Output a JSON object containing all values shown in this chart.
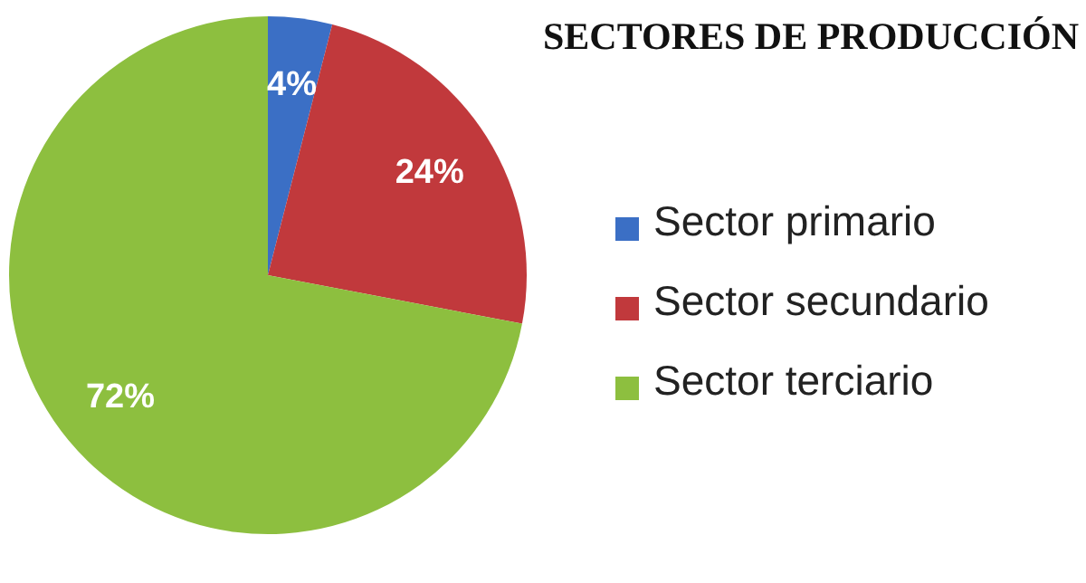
{
  "chart_data": {
    "type": "pie",
    "title": "SECTORES DE PRODUCCIÓN",
    "categories": [
      "Sector primario",
      "Sector secundario",
      "Sector terciario"
    ],
    "values": [
      4,
      24,
      72
    ],
    "colors": [
      "#3b6fc5",
      "#c1393c",
      "#8dbf3f"
    ],
    "value_labels": [
      "4%",
      "24%",
      "72%"
    ],
    "legend": "right"
  }
}
